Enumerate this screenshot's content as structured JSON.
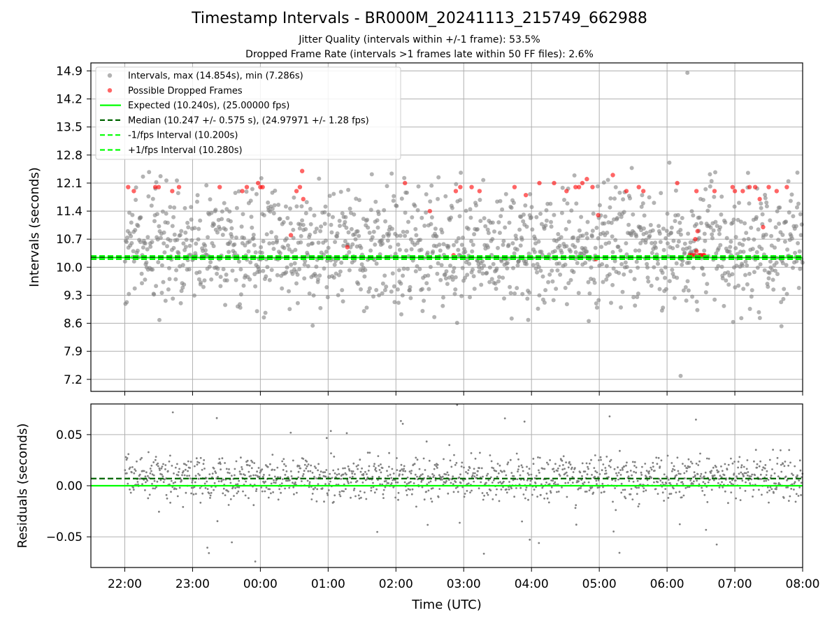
{
  "figure": {
    "title": "Timestamp Intervals - BR000M_20241113_215749_662988",
    "subtitle_jitter": "Jitter Quality (intervals within +/-1 frame): 53.5%",
    "subtitle_dropped": "Dropped Frame Rate (intervals >1 frames late within 50 FF files): 2.6%"
  },
  "colors": {
    "intervals": "#808080",
    "dropped": "#ff0000",
    "expected": "#00ff00",
    "median": "#006400",
    "fps_bounds": "#00ff00",
    "grid": "#b0b0b0"
  },
  "chart_data": [
    {
      "type": "scatter",
      "panel": "top",
      "ylabel": "Intervals (seconds)",
      "ylim": [
        6.9,
        15.1
      ],
      "y_ticks": [
        "7.2",
        "7.9",
        "8.6",
        "9.3",
        "10.0",
        "10.7",
        "11.4",
        "12.1",
        "12.8",
        "13.5",
        "14.2",
        "14.9"
      ],
      "grid": true,
      "legend": {
        "placement": "top-left",
        "entries": [
          {
            "label": "Intervals, max (14.854s), min (7.286s)",
            "kind": "marker",
            "color": "#808080"
          },
          {
            "label": "Possible Dropped Frames",
            "kind": "marker",
            "color": "#ff0000"
          },
          {
            "label": "Expected (10.240s), (25.00000 fps)",
            "kind": "solid",
            "color": "#00ff00"
          },
          {
            "label": "Median (10.247 +/- 0.575 s), (24.97971 +/- 1.28 fps)",
            "kind": "dashed",
            "color": "#006400"
          },
          {
            "label": "-1/fps Interval (10.200s)",
            "kind": "dashed",
            "color": "#00ff00"
          },
          {
            "label": "+1/fps Interval (10.280s)",
            "kind": "dashed",
            "color": "#00ff00"
          }
        ]
      },
      "reference_lines": [
        {
          "name": "expected",
          "y": 10.24,
          "style": "solid",
          "color": "#00ff00"
        },
        {
          "name": "median",
          "y": 10.247,
          "style": "dashed",
          "color": "#006400"
        },
        {
          "name": "minus_fps",
          "y": 10.2,
          "style": "dashed",
          "color": "#00ff00"
        },
        {
          "name": "plus_fps",
          "y": 10.28,
          "style": "dashed",
          "color": "#00ff00"
        }
      ],
      "series": [
        {
          "name": "Intervals, max (14.854s), min (7.286s)",
          "color": "#808080",
          "point_count": 1400,
          "y_max": 14.854,
          "y_min": 7.286,
          "y_typical_range": [
            8.3,
            12.7
          ],
          "extremes": [
            {
              "x": "06:12",
              "y": 7.286
            },
            {
              "x": "06:18",
              "y": 14.854
            }
          ]
        },
        {
          "name": "Possible Dropped Frames",
          "color": "#ff0000",
          "points": [
            {
              "x": "22:03",
              "y": 12.0
            },
            {
              "x": "22:08",
              "y": 11.9
            },
            {
              "x": "22:27",
              "y": 12.0
            },
            {
              "x": "22:30",
              "y": 12.0
            },
            {
              "x": "22:42",
              "y": 11.9
            },
            {
              "x": "22:48",
              "y": 12.0
            },
            {
              "x": "23:24",
              "y": 12.0
            },
            {
              "x": "23:44",
              "y": 11.9
            },
            {
              "x": "23:48",
              "y": 12.0
            },
            {
              "x": "23:58",
              "y": 12.1
            },
            {
              "x": "00:00",
              "y": 12.0
            },
            {
              "x": "00:02",
              "y": 12.0
            },
            {
              "x": "00:27",
              "y": 10.8
            },
            {
              "x": "00:32",
              "y": 11.9
            },
            {
              "x": "00:35",
              "y": 12.0
            },
            {
              "x": "00:37",
              "y": 12.4
            },
            {
              "x": "00:38",
              "y": 11.7
            },
            {
              "x": "01:17",
              "y": 10.5
            },
            {
              "x": "02:08",
              "y": 12.1
            },
            {
              "x": "02:30",
              "y": 11.4
            },
            {
              "x": "02:51",
              "y": 10.3
            },
            {
              "x": "02:53",
              "y": 11.9
            },
            {
              "x": "02:57",
              "y": 12.0
            },
            {
              "x": "03:07",
              "y": 12.0
            },
            {
              "x": "03:14",
              "y": 11.9
            },
            {
              "x": "03:45",
              "y": 12.0
            },
            {
              "x": "03:55",
              "y": 11.8
            },
            {
              "x": "04:07",
              "y": 12.1
            },
            {
              "x": "04:20",
              "y": 12.1
            },
            {
              "x": "04:31",
              "y": 11.9
            },
            {
              "x": "04:39",
              "y": 12.0
            },
            {
              "x": "04:42",
              "y": 12.0
            },
            {
              "x": "04:45",
              "y": 12.1
            },
            {
              "x": "04:49",
              "y": 12.2
            },
            {
              "x": "04:54",
              "y": 12.0
            },
            {
              "x": "04:57",
              "y": 10.2
            },
            {
              "x": "04:59",
              "y": 11.3
            },
            {
              "x": "05:12",
              "y": 12.3
            },
            {
              "x": "05:24",
              "y": 11.9
            },
            {
              "x": "05:35",
              "y": 12.0
            },
            {
              "x": "05:39",
              "y": 11.9
            },
            {
              "x": "06:09",
              "y": 12.1
            },
            {
              "x": "06:20",
              "y": 10.3
            },
            {
              "x": "06:22",
              "y": 10.3
            },
            {
              "x": "06:24",
              "y": 10.3
            },
            {
              "x": "06:25",
              "y": 10.7
            },
            {
              "x": "06:26",
              "y": 10.4
            },
            {
              "x": "06:27",
              "y": 10.9
            },
            {
              "x": "06:28",
              "y": 10.3
            },
            {
              "x": "06:30",
              "y": 10.3
            },
            {
              "x": "06:32",
              "y": 10.3
            },
            {
              "x": "06:33",
              "y": 10.3
            },
            {
              "x": "06:42",
              "y": 11.9
            },
            {
              "x": "06:26",
              "y": 11.9
            },
            {
              "x": "06:58",
              "y": 12.0
            },
            {
              "x": "07:00",
              "y": 11.9
            },
            {
              "x": "07:07",
              "y": 11.9
            },
            {
              "x": "07:13",
              "y": 12.0
            },
            {
              "x": "07:18",
              "y": 12.0
            },
            {
              "x": "07:22",
              "y": 11.7
            },
            {
              "x": "07:25",
              "y": 11.0
            },
            {
              "x": "07:30",
              "y": 12.0
            },
            {
              "x": "07:37",
              "y": 11.9
            },
            {
              "x": "07:46",
              "y": 12.0
            }
          ]
        }
      ]
    },
    {
      "type": "scatter",
      "panel": "bottom",
      "ylabel": "Residuals (seconds)",
      "xlabel": "Time (UTC)",
      "ylim": [
        -0.08,
        0.08
      ],
      "y_ticks": [
        "−0.05",
        "0.00",
        "0.05"
      ],
      "x_ticks": [
        "22:00",
        "23:00",
        "00:00",
        "01:00",
        "02:00",
        "03:00",
        "04:00",
        "05:00",
        "06:00",
        "07:00",
        "08:00"
      ],
      "x_range": [
        "21:30",
        "08:00"
      ],
      "grid": true,
      "reference_lines": [
        {
          "name": "zero",
          "y": 0.0,
          "style": "solid",
          "color": "#00ff00"
        },
        {
          "name": "median_residual",
          "y": 0.007,
          "style": "dashed",
          "color": "#006400"
        }
      ],
      "series": [
        {
          "name": "Residuals",
          "color": "#808080",
          "point_count": 1400,
          "y_typical_range": [
            -0.03,
            0.045
          ]
        }
      ]
    }
  ]
}
